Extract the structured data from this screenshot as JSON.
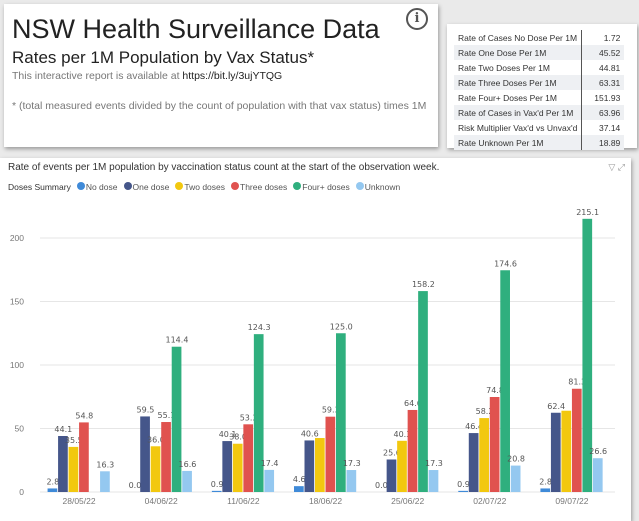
{
  "header": {
    "title": "NSW Health Surveillance Data",
    "subtitle": "Rates per 1M Population by Vax Status*",
    "availability_text": "This interactive report is available at",
    "link": "https://bit.ly/3ujYTQG",
    "footnote": "* (total measured events divided by the count of population with that vax status) times 1M",
    "info_icon": "info-icon"
  },
  "summary_table": [
    {
      "label": "Rate of Cases No Dose Per 1M",
      "value": "1.72"
    },
    {
      "label": "Rate One Dose Per 1M",
      "value": "45.52"
    },
    {
      "label": "Rate Two Doses Per 1M",
      "value": "44.81"
    },
    {
      "label": "Rate Three Doses Per 1M",
      "value": "63.31"
    },
    {
      "label": "Rate Four+ Doses Per 1M",
      "value": "151.93"
    },
    {
      "label": "Rate of Cases in Vax'd Per 1M",
      "value": "63.96"
    },
    {
      "label": "Risk Multiplier Vax'd vs Unvax'd",
      "value": "37.14"
    },
    {
      "label": "Rate Unknown Per 1M",
      "value": "18.89"
    }
  ],
  "chart_data": {
    "type": "bar",
    "title": "Rate of events per 1M population by vaccination status count at the start of the observation week.",
    "legend_title": "Doses Summary",
    "legend_position": "top-left",
    "categories": [
      "28/05/22",
      "04/06/22",
      "11/06/22",
      "18/06/22",
      "25/06/22",
      "02/07/22",
      "09/07/22"
    ],
    "ylim": [
      0,
      230
    ],
    "yticks": [
      0,
      50,
      100,
      150,
      200
    ],
    "grid": true,
    "series": [
      {
        "name": "No dose",
        "color": "#3f8ad8",
        "values": [
          2.8,
          0.0,
          0.9,
          4.6,
          0.0,
          0.9,
          2.8
        ]
      },
      {
        "name": "One dose",
        "color": "#45568a",
        "values": [
          44.1,
          59.5,
          40.1,
          40.6,
          25.6,
          46.4,
          62.4
        ]
      },
      {
        "name": "Two doses",
        "color": "#f2c80f",
        "values": [
          35.5,
          36.0,
          38.0,
          42.5,
          40.3,
          58.2,
          64.0
        ]
      },
      {
        "name": "Three doses",
        "color": "#e0524f",
        "values": [
          54.8,
          55.1,
          53.3,
          59.3,
          64.6,
          74.8,
          81.3
        ]
      },
      {
        "name": "Four+ doses",
        "color": "#2faf7e",
        "values": [
          null,
          114.4,
          124.3,
          125.0,
          158.2,
          174.6,
          215.1
        ]
      },
      {
        "name": "Unknown",
        "color": "#94c8f0",
        "values": [
          16.3,
          16.6,
          17.4,
          17.3,
          17.3,
          20.8,
          26.6
        ]
      }
    ],
    "hidden_labels": [
      [],
      [],
      [],
      [
        "Two doses"
      ],
      [],
      [],
      [
        "Two doses"
      ]
    ]
  }
}
